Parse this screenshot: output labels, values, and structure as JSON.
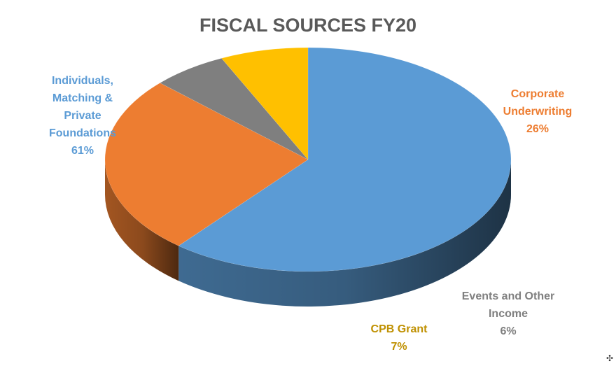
{
  "chart_data": {
    "type": "pie",
    "title": "FISCAL SOURCES FY20",
    "slices": [
      {
        "label": "Individuals, Matching & Private Foundations",
        "label_lines": [
          "Individuals,",
          "Matching &",
          "Private",
          "Foundations"
        ],
        "value": 61,
        "value_text": "61%",
        "color": "#5B9BD5",
        "label_color": "#5B9BD5"
      },
      {
        "label": "Corporate Underwriting",
        "label_lines": [
          "Corporate",
          "Underwriting"
        ],
        "value": 26,
        "value_text": "26%",
        "color": "#ED7D31",
        "label_color": "#ED7D31"
      },
      {
        "label": "Events and Other Income",
        "label_lines": [
          "Events and Other",
          "Income"
        ],
        "value": 6,
        "value_text": "6%",
        "color": "#7F7F7F",
        "label_color": "#7F7F7F"
      },
      {
        "label": "CPB Grant",
        "label_lines": [
          "CPB Grant"
        ],
        "value": 7,
        "value_text": "7%",
        "color": "#FFC000",
        "label_color": "#BF9000"
      }
    ],
    "style": "3d-pie",
    "legend": "none"
  },
  "resize_glyph": "✣"
}
